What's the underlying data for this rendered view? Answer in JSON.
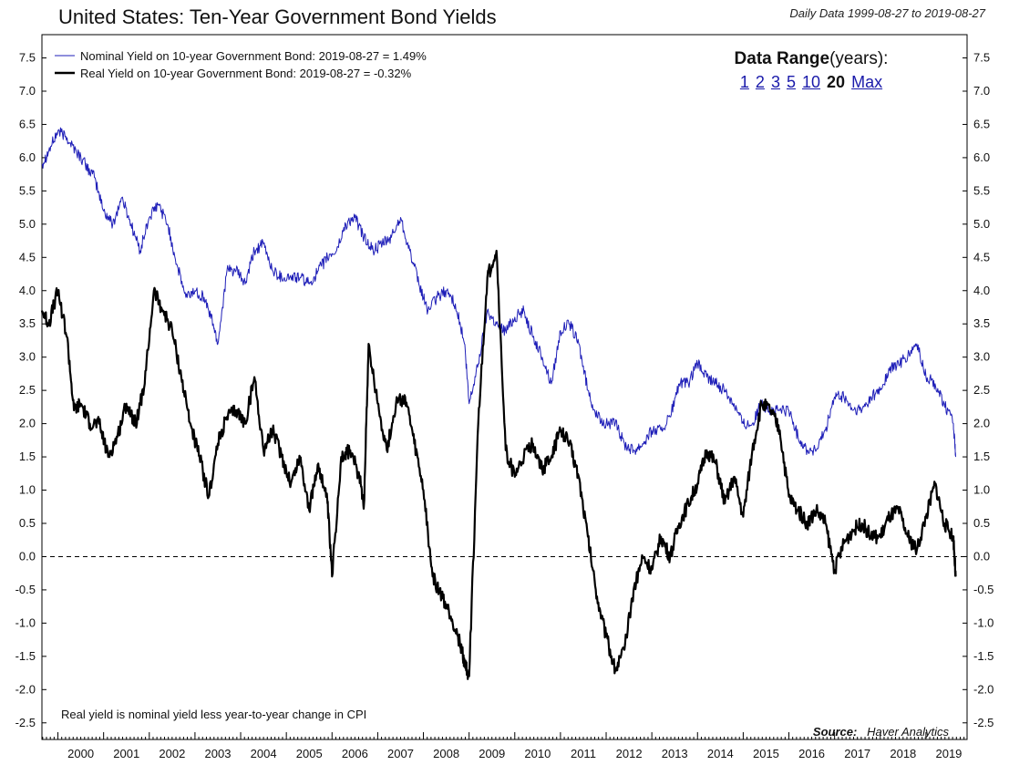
{
  "title": "United States: Ten-Year Government Bond Yields",
  "subtitle": "Daily Data 1999-08-27 to 2019-08-27",
  "range_selector": {
    "label": "Data Range",
    "unit": "(years):",
    "options": [
      "1",
      "2",
      "3",
      "5",
      "10",
      "20",
      "Max"
    ],
    "selected": "20"
  },
  "note": "Real yield is nominal yield less year-to-year change in CPI",
  "source_label": "Source:",
  "source_value": "Haver Analytics",
  "colors": {
    "nominal": "#1f1fb8",
    "real": "#000000",
    "axis": "#000000"
  },
  "chart_data": {
    "type": "line",
    "title": "United States: Ten-Year Government Bond Yields",
    "xlabel": "",
    "ylabel": "",
    "xlim": [
      1999.65,
      2019.9
    ],
    "ylim": [
      -2.75,
      7.85
    ],
    "y_ticks": [
      -2.5,
      -2.0,
      -1.5,
      -1.0,
      -0.5,
      0.0,
      0.5,
      1.0,
      1.5,
      2.0,
      2.5,
      3.0,
      3.5,
      4.0,
      4.5,
      5.0,
      5.5,
      6.0,
      6.5,
      7.0,
      7.5
    ],
    "x_tick_labels": [
      "2000",
      "2001",
      "2002",
      "2003",
      "2004",
      "2005",
      "2006",
      "2007",
      "2008",
      "2009",
      "2010",
      "2011",
      "2012",
      "2013",
      "2014",
      "2015",
      "2016",
      "2017",
      "2018",
      "2019"
    ],
    "reference_line": 0.0,
    "legend_position": "top-left",
    "series": [
      {
        "name": "Nominal Yield on 10-year Government Bond: 2019-08-27 = 1.49%",
        "color": "#1f1fb8",
        "width": 1,
        "x": [
          1999.65,
          1999.8,
          2000.0,
          2000.2,
          2000.4,
          2000.6,
          2000.8,
          2001.0,
          2001.2,
          2001.4,
          2001.6,
          2001.8,
          2002.0,
          2002.2,
          2002.4,
          2002.6,
          2002.8,
          2003.0,
          2003.2,
          2003.4,
          2003.5,
          2003.7,
          2003.9,
          2004.1,
          2004.3,
          2004.5,
          2004.7,
          2004.9,
          2005.1,
          2005.3,
          2005.5,
          2005.7,
          2005.9,
          2006.1,
          2006.3,
          2006.5,
          2006.7,
          2006.9,
          2007.1,
          2007.3,
          2007.5,
          2007.7,
          2007.9,
          2008.1,
          2008.3,
          2008.5,
          2008.7,
          2008.9,
          2009.0,
          2009.2,
          2009.4,
          2009.6,
          2009.8,
          2010.0,
          2010.2,
          2010.4,
          2010.6,
          2010.8,
          2011.0,
          2011.2,
          2011.4,
          2011.6,
          2011.8,
          2012.0,
          2012.2,
          2012.4,
          2012.6,
          2012.8,
          2013.0,
          2013.2,
          2013.4,
          2013.6,
          2013.8,
          2014.0,
          2014.2,
          2014.4,
          2014.6,
          2014.8,
          2015.0,
          2015.2,
          2015.4,
          2015.6,
          2015.8,
          2016.0,
          2016.2,
          2016.4,
          2016.6,
          2016.8,
          2017.0,
          2017.2,
          2017.4,
          2017.6,
          2017.8,
          2018.0,
          2018.2,
          2018.4,
          2018.6,
          2018.8,
          2019.0,
          2019.2,
          2019.4,
          2019.6,
          2019.65
        ],
        "y": [
          5.9,
          6.1,
          6.4,
          6.3,
          6.1,
          5.9,
          5.7,
          5.2,
          5.0,
          5.4,
          5.0,
          4.6,
          5.1,
          5.3,
          5.0,
          4.4,
          3.9,
          4.0,
          3.9,
          3.5,
          3.2,
          4.3,
          4.3,
          4.1,
          4.6,
          4.7,
          4.3,
          4.2,
          4.2,
          4.2,
          4.1,
          4.3,
          4.5,
          4.6,
          5.0,
          5.1,
          4.8,
          4.6,
          4.7,
          4.8,
          5.1,
          4.6,
          4.1,
          3.7,
          3.9,
          4.0,
          3.8,
          3.2,
          2.3,
          2.9,
          3.7,
          3.5,
          3.4,
          3.6,
          3.7,
          3.3,
          3.0,
          2.6,
          3.4,
          3.5,
          3.2,
          2.5,
          2.1,
          2.0,
          2.0,
          1.7,
          1.6,
          1.7,
          1.9,
          1.9,
          2.1,
          2.6,
          2.6,
          2.9,
          2.7,
          2.6,
          2.5,
          2.3,
          2.0,
          2.0,
          2.3,
          2.2,
          2.2,
          2.2,
          1.8,
          1.6,
          1.6,
          1.9,
          2.4,
          2.4,
          2.2,
          2.2,
          2.4,
          2.5,
          2.8,
          2.9,
          3.0,
          3.2,
          2.7,
          2.6,
          2.3,
          2.0,
          1.5
        ]
      },
      {
        "name": "Real Yield on 10-year Government Bond: 2019-08-27 = -0.32%",
        "color": "#000000",
        "width": 2.2,
        "x": [
          1999.65,
          1999.8,
          2000.0,
          2000.2,
          2000.35,
          2000.5,
          2000.7,
          2000.9,
          2001.1,
          2001.3,
          2001.5,
          2001.7,
          2001.9,
          2002.1,
          2002.3,
          2002.5,
          2002.7,
          2002.9,
          2003.1,
          2003.3,
          2003.5,
          2003.7,
          2003.9,
          2004.1,
          2004.3,
          2004.5,
          2004.7,
          2004.9,
          2005.1,
          2005.3,
          2005.5,
          2005.7,
          2005.9,
          2006.0,
          2006.2,
          2006.4,
          2006.6,
          2006.7,
          2006.8,
          2007.0,
          2007.2,
          2007.4,
          2007.6,
          2007.8,
          2008.0,
          2008.2,
          2008.4,
          2008.6,
          2008.8,
          2008.9,
          2009.0,
          2009.2,
          2009.4,
          2009.6,
          2009.8,
          2010.0,
          2010.2,
          2010.4,
          2010.6,
          2010.8,
          2011.0,
          2011.2,
          2011.4,
          2011.6,
          2011.8,
          2012.0,
          2012.2,
          2012.4,
          2012.6,
          2012.8,
          2013.0,
          2013.2,
          2013.4,
          2013.6,
          2013.8,
          2014.0,
          2014.2,
          2014.4,
          2014.6,
          2014.8,
          2015.0,
          2015.2,
          2015.4,
          2015.6,
          2015.8,
          2016.0,
          2016.2,
          2016.4,
          2016.6,
          2016.8,
          2017.0,
          2017.2,
          2017.4,
          2017.6,
          2017.8,
          2018.0,
          2018.2,
          2018.4,
          2018.6,
          2018.8,
          2019.0,
          2019.2,
          2019.4,
          2019.6,
          2019.65
        ],
        "y": [
          3.7,
          3.5,
          4.0,
          3.3,
          2.2,
          2.3,
          2.0,
          2.0,
          1.5,
          1.8,
          2.3,
          2.0,
          2.6,
          4.0,
          3.7,
          3.4,
          2.7,
          2.0,
          1.5,
          0.9,
          1.7,
          2.1,
          2.2,
          2.0,
          2.7,
          1.6,
          1.9,
          1.5,
          1.1,
          1.5,
          0.7,
          1.4,
          0.8,
          -0.3,
          1.5,
          1.6,
          1.2,
          0.8,
          3.2,
          2.3,
          1.6,
          2.3,
          2.4,
          1.7,
          1.0,
          -0.3,
          -0.6,
          -0.9,
          -1.3,
          -1.6,
          -1.8,
          2.0,
          4.2,
          4.6,
          1.6,
          1.2,
          1.5,
          1.7,
          1.3,
          1.5,
          1.9,
          1.7,
          1.2,
          0.3,
          -0.6,
          -1.2,
          -1.7,
          -1.4,
          -0.5,
          0.0,
          -0.2,
          0.3,
          0.0,
          0.5,
          0.8,
          1.1,
          1.6,
          1.4,
          0.8,
          1.2,
          0.6,
          1.6,
          2.3,
          2.2,
          1.9,
          0.9,
          0.7,
          0.5,
          0.7,
          0.5,
          -0.2,
          0.2,
          0.4,
          0.5,
          0.3,
          0.3,
          0.6,
          0.7,
          0.3,
          0.1,
          0.6,
          1.1,
          0.5,
          0.3,
          -0.3
        ]
      }
    ]
  }
}
